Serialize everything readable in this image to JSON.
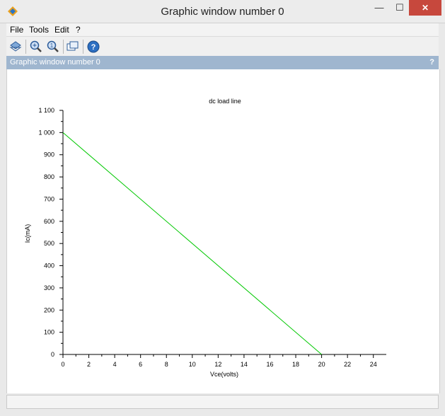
{
  "window": {
    "title": "Graphic window number 0",
    "close_glyph": "✕",
    "min_glyph": "—",
    "max_glyph": "☐"
  },
  "menu": [
    {
      "label": "File"
    },
    {
      "label": "Tools"
    },
    {
      "label": "Edit"
    },
    {
      "label": "?"
    }
  ],
  "toolbar": {
    "icons": [
      "rotate-icon",
      "zoom-icon",
      "zoom-reset-icon",
      "datatip-icon",
      "help-icon"
    ]
  },
  "panel": {
    "title": "Graphic window number 0",
    "help": "?"
  },
  "colors": {
    "line": "#00c800",
    "panel_header": "#9fb6cf"
  },
  "chart_data": {
    "type": "line",
    "title": "dc load line",
    "xlabel": "Vce(volts)",
    "ylabel": "Ic(mA)",
    "xlim": [
      0,
      25
    ],
    "ylim": [
      0,
      1100
    ],
    "xticks": [
      0,
      2,
      4,
      6,
      8,
      10,
      12,
      14,
      16,
      18,
      20,
      22,
      24
    ],
    "xtick_labels": [
      "0",
      "2",
      "4",
      "6",
      "8",
      "10",
      "12",
      "14",
      "16",
      "18",
      "20",
      "22",
      "24"
    ],
    "yticks": [
      0,
      100,
      200,
      300,
      400,
      500,
      600,
      700,
      800,
      900,
      1000,
      1100
    ],
    "ytick_labels": [
      "0",
      "100",
      "200",
      "300",
      "400",
      "500",
      "600",
      "700",
      "800",
      "900",
      "1 000",
      "1 100"
    ],
    "series": [
      {
        "x": [
          0,
          20
        ],
        "y": [
          1000,
          0
        ]
      }
    ]
  }
}
